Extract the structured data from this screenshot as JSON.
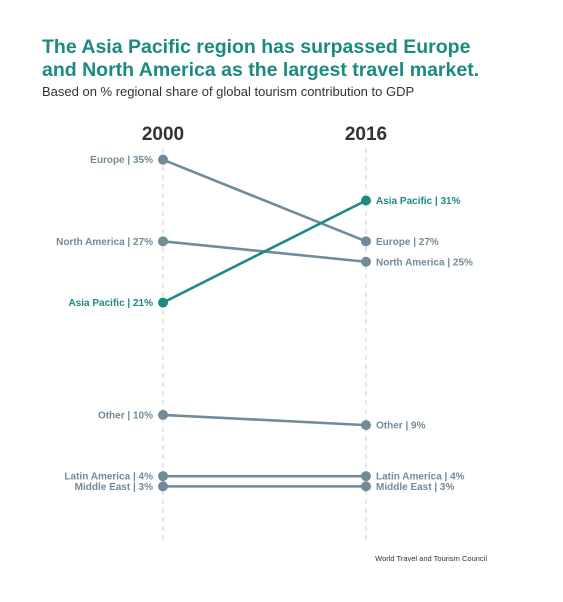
{
  "title_lines": [
    "The Asia Pacific region has surpassed Europe",
    "and North America as the largest travel market."
  ],
  "subtitle": "Based on % regional share of global tourism contribution to GDP",
  "source": "World Travel and Tourism Council",
  "colors": {
    "title": "#1b8a80",
    "highlight": "#1b8a80",
    "muted": "#718b99",
    "axis": "#cfcfcf",
    "year": "#333333"
  },
  "chart_data": {
    "type": "line",
    "x": [
      "2000",
      "2016"
    ],
    "ylim": [
      0,
      37
    ],
    "grid": false,
    "series": [
      {
        "name": "Europe",
        "values": [
          35,
          27
        ],
        "labels": [
          "Europe | 35%",
          "Europe | 27%"
        ],
        "highlight": false
      },
      {
        "name": "North America",
        "values": [
          27,
          25
        ],
        "labels": [
          "North America | 27%",
          "North America | 25%"
        ],
        "highlight": false
      },
      {
        "name": "Asia Pacific",
        "values": [
          21,
          31
        ],
        "labels": [
          "Asia Pacific | 21%",
          "Asia Pacific | 31%"
        ],
        "highlight": true
      },
      {
        "name": "Other",
        "values": [
          10,
          9
        ],
        "labels": [
          "Other | 10%",
          "Other | 9%"
        ],
        "highlight": false
      },
      {
        "name": "Latin America",
        "values": [
          4,
          4
        ],
        "labels": [
          "Latin America | 4%",
          "Latin America | 4%"
        ],
        "highlight": false
      },
      {
        "name": "Middle East",
        "values": [
          3,
          3
        ],
        "labels": [
          "Middle East | 3%",
          "Middle East | 3%"
        ],
        "highlight": false
      }
    ]
  }
}
